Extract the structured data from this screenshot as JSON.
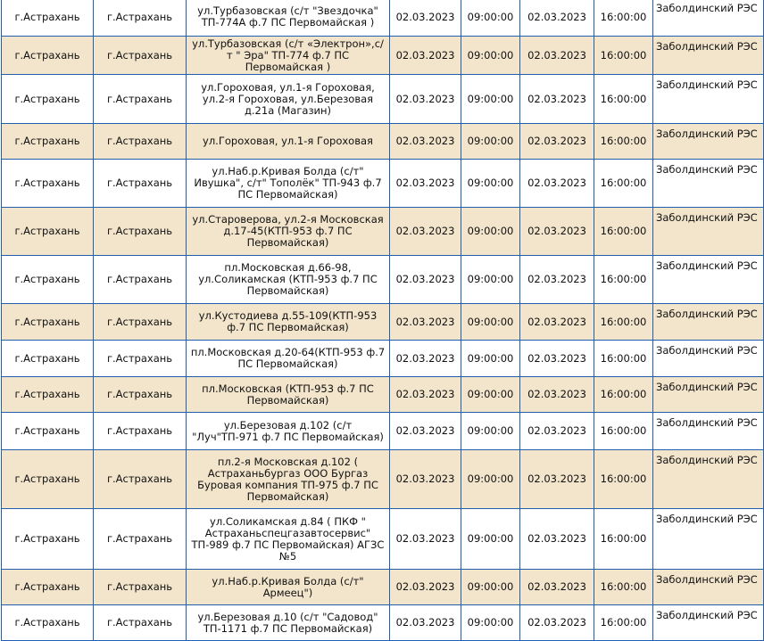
{
  "table": {
    "rows": [
      {
        "city": "г.Астрахань",
        "district": "г.Астрахань",
        "address": "ул.Турбазовская (с/т \"Звездочка\" ТП-774А ф.7 ПС Первомайская )",
        "start_date": "02.03.2023",
        "start_time": "09:00:00",
        "end_date": "02.03.2023",
        "end_time": "16:00:00",
        "res": "Заболдинский РЭС"
      },
      {
        "city": "г.Астрахань",
        "district": "г.Астрахань",
        "address": "ул.Турбазовская (с/т «Электрон»,с/т \" Эра\" ТП-774 ф.7 ПС Первомайская )",
        "start_date": "02.03.2023",
        "start_time": "09:00:00",
        "end_date": "02.03.2023",
        "end_time": "16:00:00",
        "res": "Заболдинский РЭС"
      },
      {
        "city": "г.Астрахань",
        "district": "г.Астрахань",
        "address": "ул.Гороховая, ул.1-я Гороховая, ул.2-я Гороховая, ул.Березовая д.21а (Магазин)",
        "start_date": "02.03.2023",
        "start_time": "09:00:00",
        "end_date": "02.03.2023",
        "end_time": "16:00:00",
        "res": "Заболдинский РЭС"
      },
      {
        "city": "г.Астрахань",
        "district": "г.Астрахань",
        "address": "ул.Гороховая, ул.1-я Гороховая",
        "start_date": "02.03.2023",
        "start_time": "09:00:00",
        "end_date": "02.03.2023",
        "end_time": "16:00:00",
        "res": "Заболдинский РЭС"
      },
      {
        "city": "г.Астрахань",
        "district": "г.Астрахань",
        "address": "ул.Наб.р.Кривая Болда (с/т\" Ивушка\", с/т\" Тополёк\" ТП-943 ф.7 ПС Первомайская)",
        "start_date": "02.03.2023",
        "start_time": "09:00:00",
        "end_date": "02.03.2023",
        "end_time": "16:00:00",
        "res": "Заболдинский РЭС"
      },
      {
        "city": "г.Астрахань",
        "district": "г.Астрахань",
        "address": "ул.Староверова, ул.2-я Московская д.17-45(КТП-953 ф.7 ПС Первомайская)",
        "start_date": "02.03.2023",
        "start_time": "09:00:00",
        "end_date": "02.03.2023",
        "end_time": "16:00:00",
        "res": "Заболдинский РЭС"
      },
      {
        "city": "г.Астрахань",
        "district": "г.Астрахань",
        "address": "пл.Московская д.66-98, ул.Соликамская (КТП-953 ф.7 ПС Первомайская)",
        "start_date": "02.03.2023",
        "start_time": "09:00:00",
        "end_date": "02.03.2023",
        "end_time": "16:00:00",
        "res": "Заболдинский РЭС"
      },
      {
        "city": "г.Астрахань",
        "district": "г.Астрахань",
        "address": "ул.Кустодиева д.55-109(КТП-953 ф.7 ПС Первомайская)",
        "start_date": "02.03.2023",
        "start_time": "09:00:00",
        "end_date": "02.03.2023",
        "end_time": "16:00:00",
        "res": "Заболдинский РЭС"
      },
      {
        "city": "г.Астрахань",
        "district": "г.Астрахань",
        "address": "пл.Московская д.20-64(КТП-953 ф.7 ПС Первомайская)",
        "start_date": "02.03.2023",
        "start_time": "09:00:00",
        "end_date": "02.03.2023",
        "end_time": "16:00:00",
        "res": "Заболдинский РЭС"
      },
      {
        "city": "г.Астрахань",
        "district": "г.Астрахань",
        "address": "пл.Московская (КТП-953 ф.7 ПС Первомайская)",
        "start_date": "02.03.2023",
        "start_time": "09:00:00",
        "end_date": "02.03.2023",
        "end_time": "16:00:00",
        "res": "Заболдинский РЭС"
      },
      {
        "city": "г.Астрахань",
        "district": "г.Астрахань",
        "address": "ул.Березовая д.102 (с/т \"Луч\"ТП-971 ф.7 ПС Первомайская)",
        "start_date": "02.03.2023",
        "start_time": "09:00:00",
        "end_date": "02.03.2023",
        "end_time": "16:00:00",
        "res": "Заболдинский РЭС"
      },
      {
        "city": "г.Астрахань",
        "district": "г.Астрахань",
        "address": "пл.2-я Московская д.102 ( Астраханьбургаз ООО Бургаз Буровая компания ТП-975 ф.7 ПС Первомайская)",
        "start_date": "02.03.2023",
        "start_time": "09:00:00",
        "end_date": "02.03.2023",
        "end_time": "16:00:00",
        "res": "Заболдинский РЭС"
      },
      {
        "city": "г.Астрахань",
        "district": "г.Астрахань",
        "address": "ул.Соликамская д.84 ( ПКФ \" Астраханьспецгазавтосервис\" ТП-989 ф.7 ПС Первомайская) АГЗС №5",
        "start_date": "02.03.2023",
        "start_time": "09:00:00",
        "end_date": "02.03.2023",
        "end_time": "16:00:00",
        "res": "Заболдинский РЭС"
      },
      {
        "city": "г.Астрахань",
        "district": "г.Астрахань",
        "address": "ул.Наб.р.Кривая Болда (с/т\" Армеец\")",
        "start_date": "02.03.2023",
        "start_time": "09:00:00",
        "end_date": "02.03.2023",
        "end_time": "16:00:00",
        "res": "Заболдинский РЭС"
      },
      {
        "city": "г.Астрахань",
        "district": "г.Астрахань",
        "address": "ул.Березовая д.10 (с/т \"Садовод\" ТП-1171 ф.7 ПС Первомайская)",
        "start_date": "02.03.2023",
        "start_time": "09:00:00",
        "end_date": "02.03.2023",
        "end_time": "16:00:00",
        "res": "Заболдинский РЭС"
      }
    ]
  }
}
